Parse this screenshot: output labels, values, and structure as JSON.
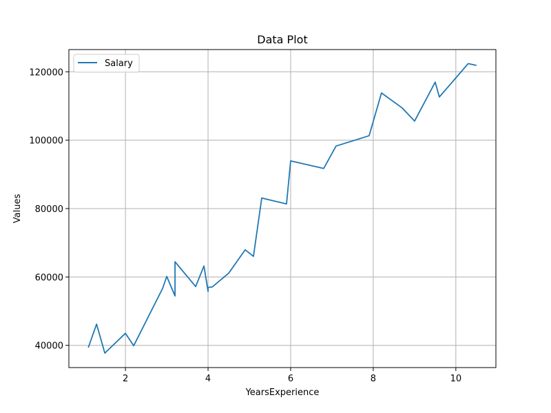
{
  "chart_data": {
    "type": "line",
    "title": "Data Plot",
    "xlabel": "YearsExperience",
    "ylabel": "Values",
    "xlim": [
      0.63,
      10.97
    ],
    "ylim": [
      33500,
      126500
    ],
    "xticks": [
      2,
      4,
      6,
      8,
      10
    ],
    "yticks": [
      40000,
      60000,
      80000,
      100000,
      120000
    ],
    "grid": true,
    "legend_position": "top-left",
    "series": [
      {
        "name": "Salary",
        "color": "#1f77b4",
        "x": [
          1.1,
          1.3,
          1.5,
          2.0,
          2.2,
          2.9,
          3.0,
          3.2,
          3.2,
          3.7,
          3.9,
          4.0,
          4.0,
          4.1,
          4.5,
          4.9,
          5.1,
          5.3,
          5.9,
          6.0,
          6.8,
          7.1,
          7.9,
          8.2,
          8.7,
          9.0,
          9.5,
          9.6,
          10.3,
          10.5
        ],
        "y": [
          39343,
          46205,
          37731,
          43525,
          39891,
          56642,
          60150,
          54445,
          64445,
          57189,
          63218,
          55794,
          56957,
          57081,
          61111,
          67938,
          66029,
          83088,
          81363,
          93940,
          91738,
          98273,
          101302,
          113812,
          109431,
          105582,
          116969,
          112635,
          122391,
          121872
        ]
      }
    ]
  }
}
